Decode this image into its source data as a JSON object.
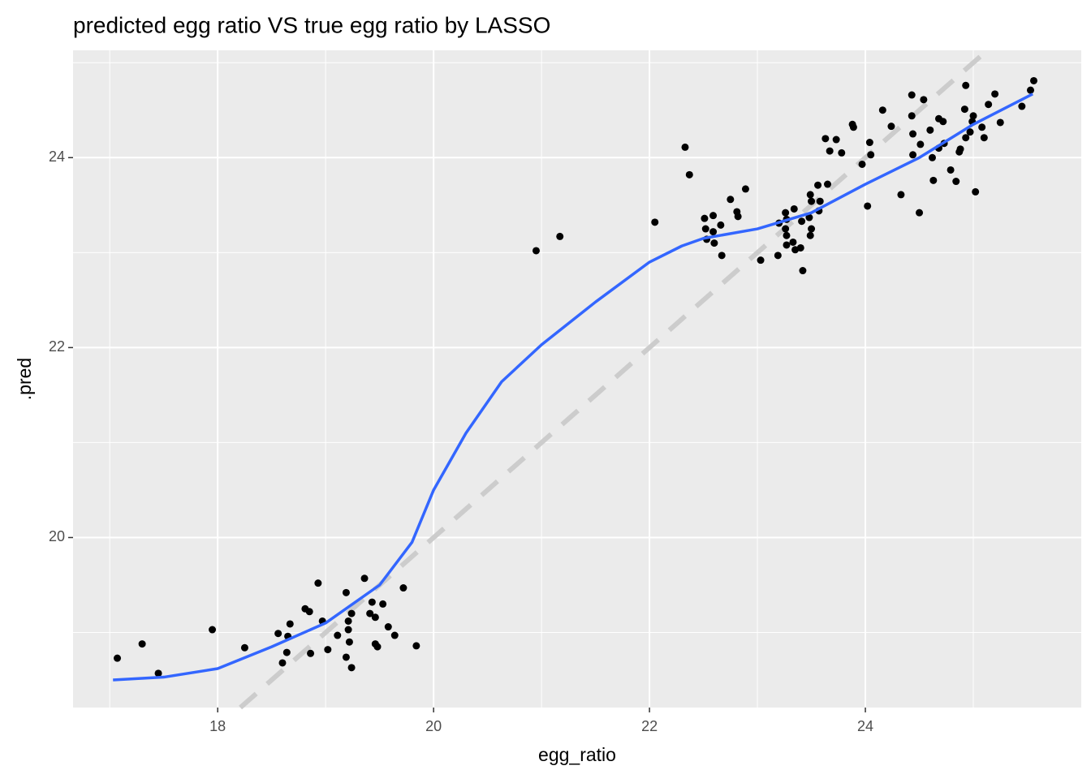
{
  "chart_data": {
    "type": "scatter",
    "title": "predicted egg ratio VS true egg ratio by LASSO",
    "xlabel": "egg_ratio",
    "ylabel": ".pred",
    "xlim": [
      16.66,
      26.0
    ],
    "ylim": [
      18.21,
      25.13
    ],
    "xticks": [
      18,
      20,
      22,
      24
    ],
    "yticks": [
      20,
      22,
      24
    ],
    "xminor": [
      17,
      19,
      21,
      23,
      25
    ],
    "yminor": [
      19,
      21,
      23,
      25
    ],
    "grid": true,
    "color": "#000000",
    "x": [
      17.07,
      17.3,
      17.45,
      17.95,
      18.25,
      18.56,
      18.6,
      18.64,
      18.65,
      18.67,
      18.81,
      18.85,
      18.86,
      18.93,
      18.97,
      19.02,
      19.11,
      19.19,
      19.19,
      19.21,
      19.21,
      19.22,
      19.24,
      19.24,
      19.36,
      19.41,
      19.43,
      19.46,
      19.46,
      19.48,
      19.53,
      19.58,
      19.64,
      19.72,
      19.84,
      20.95,
      21.17,
      22.05,
      22.33,
      22.37,
      22.51,
      22.52,
      22.53,
      22.59,
      22.59,
      22.6,
      22.66,
      22.67,
      22.75,
      22.81,
      22.82,
      22.89,
      23.03,
      23.19,
      23.2,
      23.26,
      23.27,
      23.26,
      23.27,
      23.27,
      23.33,
      23.34,
      23.35,
      23.4,
      23.41,
      23.42,
      23.48,
      23.49,
      23.49,
      23.5,
      23.5,
      23.56,
      23.57,
      23.58,
      23.63,
      23.65,
      23.67,
      23.73,
      23.78,
      23.88,
      23.89,
      23.97,
      24.02,
      24.04,
      24.05,
      24.16,
      24.24,
      24.33,
      24.43,
      24.43,
      24.44,
      24.44,
      24.5,
      24.51,
      24.54,
      24.6,
      24.62,
      24.63,
      24.68,
      24.68,
      24.72,
      24.73,
      24.79,
      24.84,
      24.87,
      24.88,
      24.92,
      24.93,
      24.93,
      24.97,
      24.99,
      25.0,
      25.02,
      25.08,
      25.1,
      25.14,
      25.2,
      25.25,
      25.45,
      25.53,
      25.56
    ],
    "values": [
      18.73,
      18.88,
      18.57,
      19.03,
      18.84,
      18.99,
      18.68,
      18.79,
      18.96,
      19.09,
      19.25,
      19.22,
      18.78,
      19.52,
      19.12,
      18.82,
      18.97,
      18.74,
      19.42,
      19.12,
      19.03,
      18.9,
      18.63,
      19.2,
      19.57,
      19.2,
      19.32,
      18.88,
      19.16,
      18.85,
      19.3,
      19.06,
      18.97,
      19.47,
      18.86,
      23.02,
      23.17,
      23.32,
      24.11,
      23.82,
      23.36,
      23.25,
      23.14,
      23.39,
      23.22,
      23.1,
      23.29,
      22.97,
      23.56,
      23.43,
      23.38,
      23.67,
      22.92,
      22.97,
      23.31,
      23.42,
      23.35,
      23.25,
      23.18,
      23.08,
      23.11,
      23.46,
      23.03,
      23.05,
      23.33,
      22.81,
      23.37,
      23.18,
      23.61,
      23.54,
      23.25,
      23.71,
      23.44,
      23.54,
      24.2,
      23.72,
      24.07,
      24.19,
      24.05,
      24.35,
      24.32,
      23.93,
      23.49,
      24.16,
      24.03,
      24.5,
      24.33,
      23.61,
      24.66,
      24.44,
      24.25,
      24.03,
      23.42,
      24.14,
      24.61,
      24.29,
      24.0,
      23.76,
      24.1,
      24.41,
      24.38,
      24.15,
      23.87,
      23.75,
      24.06,
      24.09,
      24.51,
      24.76,
      24.21,
      24.27,
      24.38,
      24.44,
      23.64,
      24.32,
      24.21,
      24.56,
      24.67,
      24.37,
      24.54,
      24.71,
      24.81
    ],
    "smooth": {
      "color": "#3366ff",
      "x": [
        17.03,
        17.5,
        18.0,
        18.5,
        19.0,
        19.5,
        19.8,
        20.0,
        20.3,
        20.63,
        21.0,
        21.5,
        22.0,
        22.3,
        22.5,
        23.0,
        23.5,
        24.0,
        24.5,
        25.0,
        25.55
      ],
      "values": [
        18.5,
        18.53,
        18.62,
        18.85,
        19.1,
        19.5,
        19.95,
        20.5,
        21.1,
        21.64,
        22.03,
        22.48,
        22.9,
        23.07,
        23.15,
        23.25,
        23.42,
        23.72,
        24.0,
        24.35,
        24.67
      ]
    },
    "reference_line": {
      "slope": 1,
      "intercept": 0,
      "color": "#cccccc"
    }
  }
}
